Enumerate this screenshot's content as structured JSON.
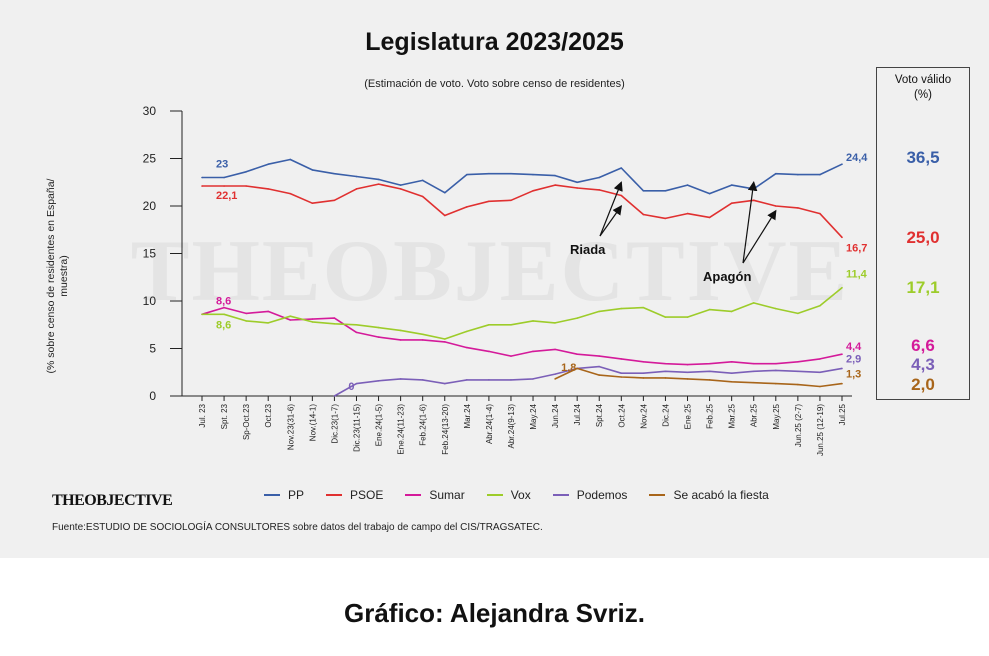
{
  "title": "Legislatura 2023/2025",
  "subtitle": "(Estimación de voto. Voto sobre censo de residentes)",
  "ylabel_line1": "(% sobre censo de residentes en España/",
  "ylabel_line2": "muestra)",
  "watermark": "THEOBJECTIVE",
  "logo_text": "THEOBJECTIVE",
  "source": "Fuente:ESTUDIO DE SOCIOLOGÍA CONSULTORES sobre datos del trabajo de campo del CIS/TRAGSATEC.",
  "credit": "Gráfico: Alejandra Svriz.",
  "panel": {
    "title_line1": "Voto válido",
    "title_line2": "(%)",
    "values": [
      {
        "party": "PP",
        "value": "36,5",
        "color": "#3a5fa8"
      },
      {
        "party": "PSOE",
        "value": "25,0",
        "color": "#e03030"
      },
      {
        "party": "Vox",
        "value": "17,1",
        "color": "#9dcc2a"
      },
      {
        "party": "Sumar",
        "value": "6,6",
        "color": "#d41a9a"
      },
      {
        "party": "Podemos",
        "value": "4,3",
        "color": "#7b5fb8"
      },
      {
        "party": "Se acabó la fiesta",
        "value": "2,0",
        "color": "#a8651a"
      }
    ]
  },
  "chart_data": {
    "type": "line",
    "title": "Legislatura 2023/2025",
    "ylabel": "(% sobre censo de residentes en España/ muestra)",
    "ylim": [
      0,
      30
    ],
    "yticks": [
      "0",
      "5",
      "10",
      "15",
      "20",
      "25",
      "30"
    ],
    "grid": false,
    "legend_position": "bottom",
    "x_labels": [
      "Jul. 23",
      "Spt. 23",
      "Sp-Oct.23",
      "Oct.23",
      "Nov.23(31-6)",
      "Nov.(14-1)",
      "Dic.23(1-7)",
      "Dic.23(11-15)",
      "Ene.24(1-5)",
      "Ene.24(11-23)",
      "Feb.24(1-6)",
      "Feb.24(13-20)",
      "Mar.24",
      "Abr.24(1-4)",
      "Abr.24(9-13)",
      "May.24",
      "Jun.24",
      "Jul.24",
      "Spt.24",
      "Oct.24",
      "Nov.24",
      "Dic.24",
      "Ene.25",
      "Feb.25",
      "Mar.25",
      "Abr.25",
      "May.25",
      "Jun.25 (2-7)",
      "Jun.25 (12-19)",
      "Jul.25"
    ],
    "series": [
      {
        "name": "PP",
        "color": "#3a5fa8",
        "x": [
          0,
          1,
          2,
          3,
          4,
          5,
          6,
          7,
          8,
          9,
          10,
          11,
          12,
          13,
          14,
          15,
          16,
          17,
          18,
          19,
          20,
          21,
          22,
          23,
          24,
          25,
          26,
          27,
          28,
          29
        ],
        "y": [
          23,
          23,
          23.6,
          24.4,
          24.9,
          23.8,
          23.4,
          23.1,
          22.8,
          22.2,
          22.7,
          21.4,
          23.3,
          23.4,
          23.4,
          23.3,
          23.2,
          22.5,
          23.0,
          24.0,
          21.6,
          21.6,
          22.2,
          21.3,
          22.2,
          21.8,
          23.4,
          23.3,
          23.3,
          24.4
        ],
        "labels": [
          {
            "x": 0,
            "text": "23"
          },
          {
            "x": 29,
            "text": "24,4"
          }
        ]
      },
      {
        "name": "PSOE",
        "color": "#e03030",
        "x": [
          0,
          1,
          2,
          3,
          4,
          5,
          6,
          7,
          8,
          9,
          10,
          11,
          12,
          13,
          14,
          15,
          16,
          17,
          18,
          19,
          20,
          21,
          22,
          23,
          24,
          25,
          26,
          27,
          28,
          29
        ],
        "y": [
          22.1,
          22.1,
          22.1,
          21.8,
          21.3,
          20.3,
          20.6,
          21.8,
          22.3,
          21.8,
          21.0,
          19.0,
          19.9,
          20.5,
          20.6,
          21.6,
          22.2,
          21.9,
          21.7,
          21.1,
          19.1,
          18.7,
          19.2,
          18.8,
          20.3,
          20.6,
          20.0,
          19.8,
          19.2,
          16.7
        ],
        "labels": [
          {
            "x": 0,
            "text": "22,1"
          },
          {
            "x": 29,
            "text": "16,7"
          }
        ]
      },
      {
        "name": "Sumar",
        "color": "#d41a9a",
        "x": [
          0,
          1,
          2,
          3,
          4,
          5,
          6,
          7,
          8,
          9,
          10,
          11,
          12,
          13,
          14,
          15,
          16,
          17,
          18,
          19,
          20,
          21,
          22,
          23,
          24,
          25,
          26,
          27,
          28,
          29
        ],
        "y": [
          8.6,
          9.3,
          8.7,
          8.9,
          8.0,
          8.1,
          8.2,
          6.7,
          6.2,
          5.9,
          5.9,
          5.7,
          5.1,
          4.7,
          4.2,
          4.7,
          4.9,
          4.4,
          4.2,
          3.9,
          3.6,
          3.4,
          3.3,
          3.4,
          3.6,
          3.4,
          3.4,
          3.6,
          3.9,
          4.4
        ],
        "labels": [
          {
            "x": 0,
            "text": "8,6"
          },
          {
            "x": 29,
            "text": "4,4"
          }
        ]
      },
      {
        "name": "Vox",
        "color": "#9dcc2a",
        "x": [
          0,
          1,
          2,
          3,
          4,
          5,
          6,
          7,
          8,
          9,
          10,
          11,
          12,
          13,
          14,
          15,
          16,
          17,
          18,
          19,
          20,
          21,
          22,
          23,
          24,
          25,
          26,
          27,
          28,
          29
        ],
        "y": [
          8.6,
          8.6,
          7.9,
          7.7,
          8.4,
          7.8,
          7.6,
          7.5,
          7.2,
          6.9,
          6.5,
          6.0,
          6.8,
          7.5,
          7.5,
          7.9,
          7.7,
          8.2,
          8.9,
          9.2,
          9.3,
          8.3,
          8.3,
          9.1,
          8.9,
          9.8,
          9.2,
          8.7,
          9.5,
          11.4
        ],
        "labels": [
          {
            "x": 0,
            "text": "8,6"
          },
          {
            "x": 29,
            "text": "11,4"
          }
        ]
      },
      {
        "name": "Podemos",
        "color": "#7b5fb8",
        "x": [
          6,
          7,
          8,
          9,
          10,
          11,
          12,
          13,
          14,
          15,
          16,
          17,
          18,
          19,
          20,
          21,
          22,
          23,
          24,
          25,
          26,
          27,
          28,
          29
        ],
        "y": [
          0,
          1.3,
          1.6,
          1.8,
          1.7,
          1.3,
          1.7,
          1.7,
          1.7,
          1.8,
          2.3,
          2.9,
          3.1,
          2.4,
          2.4,
          2.6,
          2.5,
          2.6,
          2.4,
          2.6,
          2.7,
          2.6,
          2.5,
          2.9
        ],
        "labels": [
          {
            "x": 6,
            "text": "0"
          },
          {
            "x": 29,
            "text": "2,9"
          }
        ]
      },
      {
        "name": "Se acabó la fiesta",
        "color": "#a8651a",
        "x": [
          16,
          17,
          18,
          19,
          20,
          21,
          22,
          23,
          24,
          25,
          26,
          27,
          28,
          29
        ],
        "y": [
          1.8,
          2.9,
          2.2,
          2.0,
          1.9,
          1.9,
          1.8,
          1.7,
          1.5,
          1.4,
          1.3,
          1.2,
          1.0,
          1.3
        ],
        "labels": [
          {
            "x": 16,
            "text": "1,8"
          },
          {
            "x": 29,
            "text": "1,3"
          }
        ]
      }
    ],
    "annotations": [
      {
        "text": "Riada",
        "arrow_targets": [
          {
            "x": 19,
            "y": 22.5
          },
          {
            "x": 19,
            "y": 20.0
          }
        ]
      },
      {
        "text": "Apagón",
        "arrow_targets": [
          {
            "x": 25,
            "y": 22.5
          },
          {
            "x": 26,
            "y": 19.5
          }
        ]
      }
    ]
  }
}
